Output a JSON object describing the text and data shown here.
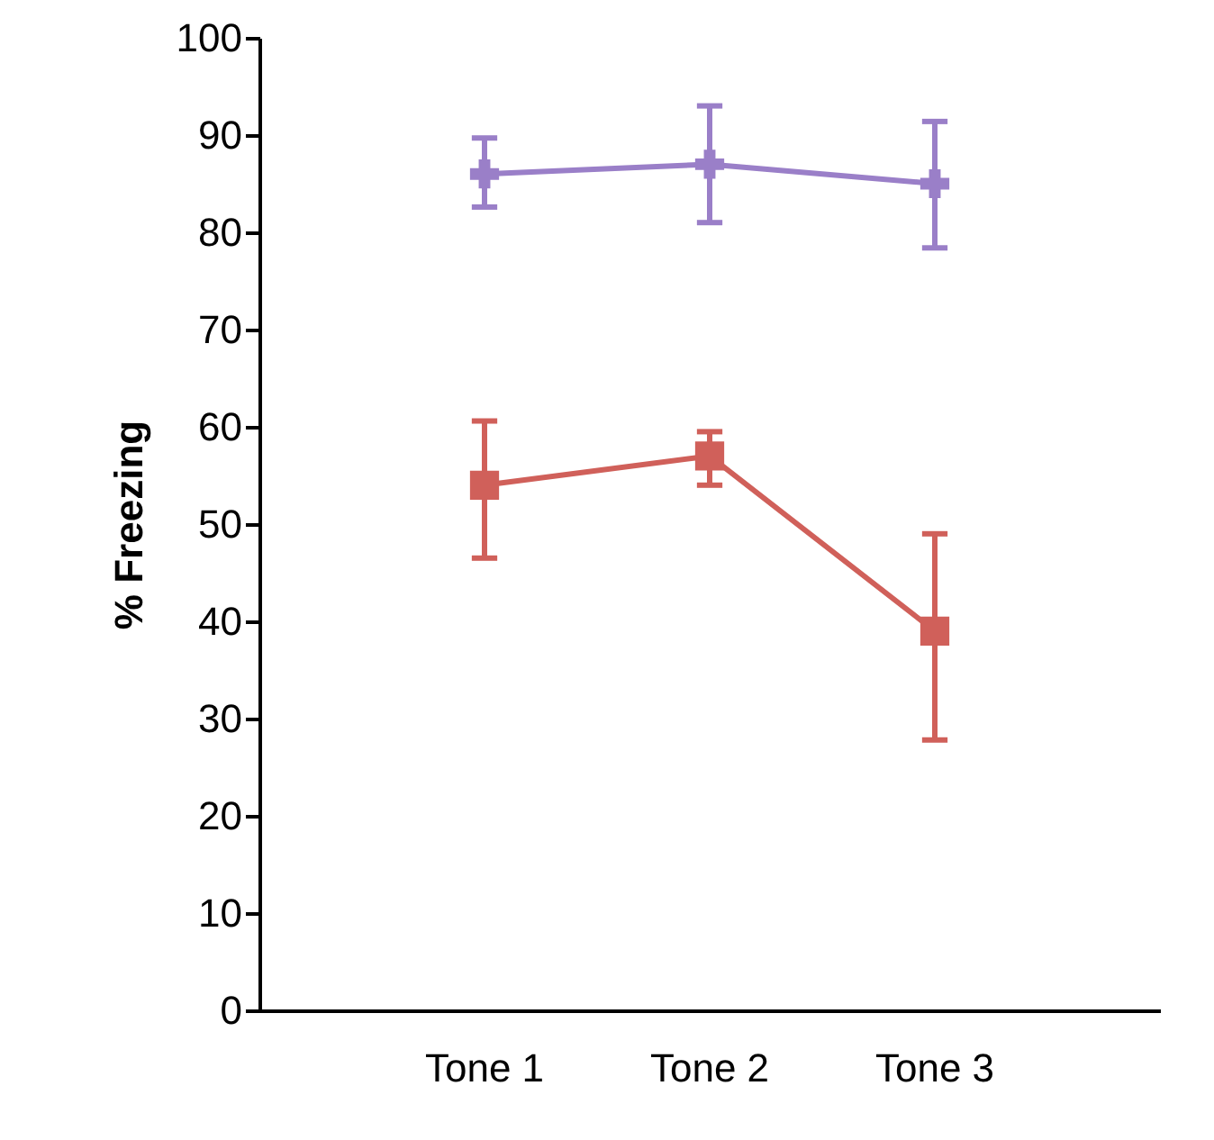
{
  "chart_data": {
    "type": "line",
    "ylabel": "% Freezing",
    "categories": [
      "Tone 1",
      "Tone 2",
      "Tone 3"
    ],
    "ylim": [
      0,
      100
    ],
    "yticks": [
      0,
      10,
      20,
      30,
      40,
      50,
      60,
      70,
      80,
      90,
      100
    ],
    "grid": false,
    "line_style": "solid",
    "series": [
      {
        "color": "#9a7fc8",
        "marker": "cross",
        "values": [
          86,
          87,
          85
        ],
        "errors": [
          [
            82.6,
            89.7
          ],
          [
            81,
            93
          ],
          [
            78.4,
            91.4
          ]
        ]
      },
      {
        "color": "#d0605a",
        "marker": "square",
        "values": [
          54,
          57,
          39
        ],
        "errors": [
          [
            46.5,
            60.6
          ],
          [
            54,
            59.5
          ],
          [
            27.8,
            49
          ]
        ]
      }
    ]
  }
}
